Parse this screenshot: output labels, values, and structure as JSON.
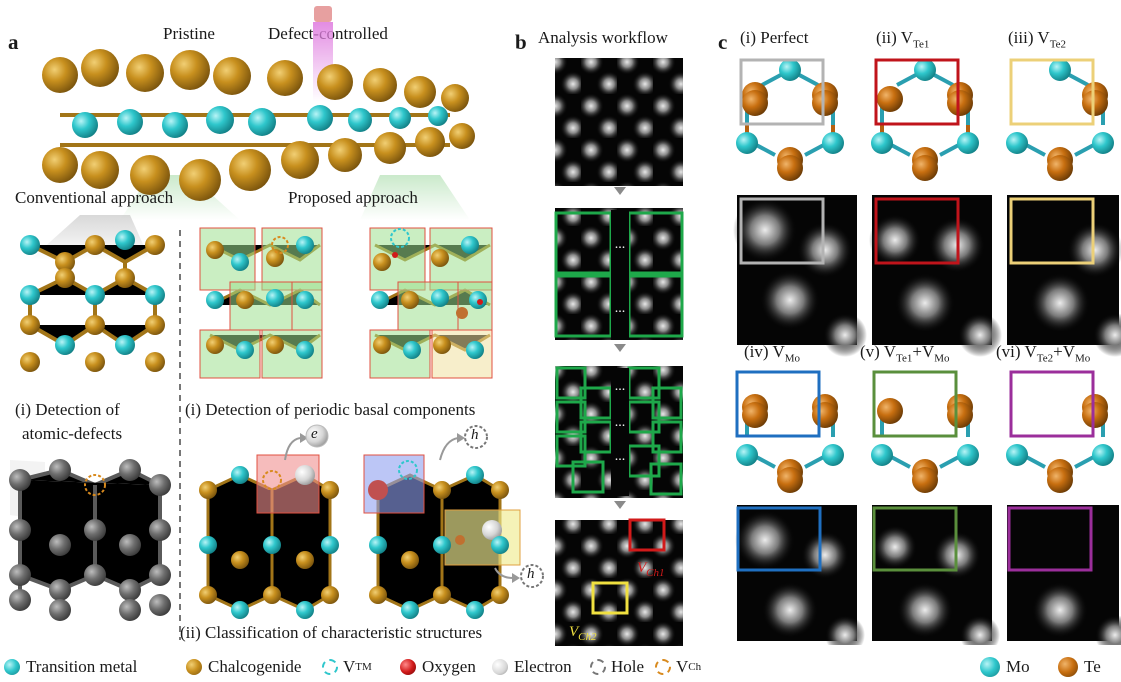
{
  "panel_a": {
    "letter": "a",
    "pristine": "Pristine",
    "defect_controlled": "Defect-controlled",
    "conventional": "Conventional approach",
    "proposed": "Proposed approach",
    "detect_atomic_1": "(i) Detection of",
    "detect_atomic_2": "atomic-defects",
    "detect_periodic": "(i) Detection of periodic basal components",
    "classification": "(ii) Classification of characteristic structures",
    "e": "e",
    "h": "h"
  },
  "panel_b": {
    "letter": "b",
    "title": "Analysis workflow",
    "vch1": "V",
    "vch1_sub": "Ch1",
    "vch2": "V",
    "vch2_sub": "Ch2",
    "dots": "..."
  },
  "panel_c": {
    "letter": "c",
    "cases": [
      {
        "label": "(i) Perfect",
        "sub": "",
        "tail": "",
        "tail_sub": "",
        "color": "#b3b3b3"
      },
      {
        "label": "(ii) V",
        "sub": "Te1",
        "tail": "",
        "tail_sub": "",
        "color": "#c0141b"
      },
      {
        "label": "(iii) V",
        "sub": "Te2",
        "tail": "",
        "tail_sub": "",
        "color": "#ecd078"
      },
      {
        "label": "(iv) V",
        "sub": "Mo",
        "tail": "",
        "tail_sub": "",
        "color": "#1f6fc0"
      },
      {
        "label": "(v) V",
        "sub": "Te1",
        "tail": "+V",
        "tail_sub": "Mo",
        "color": "#5a8f3c"
      },
      {
        "label": "(vi) V",
        "sub": "Te2",
        "tail": "+V",
        "tail_sub": "Mo",
        "color": "#9b2e9b"
      }
    ]
  },
  "legend": {
    "transition_metal": "Transition metal",
    "chalcogenide": "Chalcogenide",
    "vtm": "V",
    "vtm_sub": "TM",
    "oxygen": "Oxygen",
    "electron": "Electron",
    "hole": "Hole",
    "vch": "V",
    "vch_sub": "Ch",
    "mo": "Mo",
    "te": "Te"
  },
  "colors": {
    "transition_metal": "#2fc7cc",
    "chalcogenide": "#c8901e",
    "oxygen": "#d11a1a",
    "electron": "#d9d9d9",
    "hole": "#777777",
    "vacancy_ch": "#d88a1e",
    "vacancy_tm": "#2fc7cc",
    "mo": "#2fc7cc",
    "te": "#c86f10",
    "green_box": "#1ea84a",
    "red_box": "#d11a1a",
    "yellow_box": "#f0e040"
  }
}
